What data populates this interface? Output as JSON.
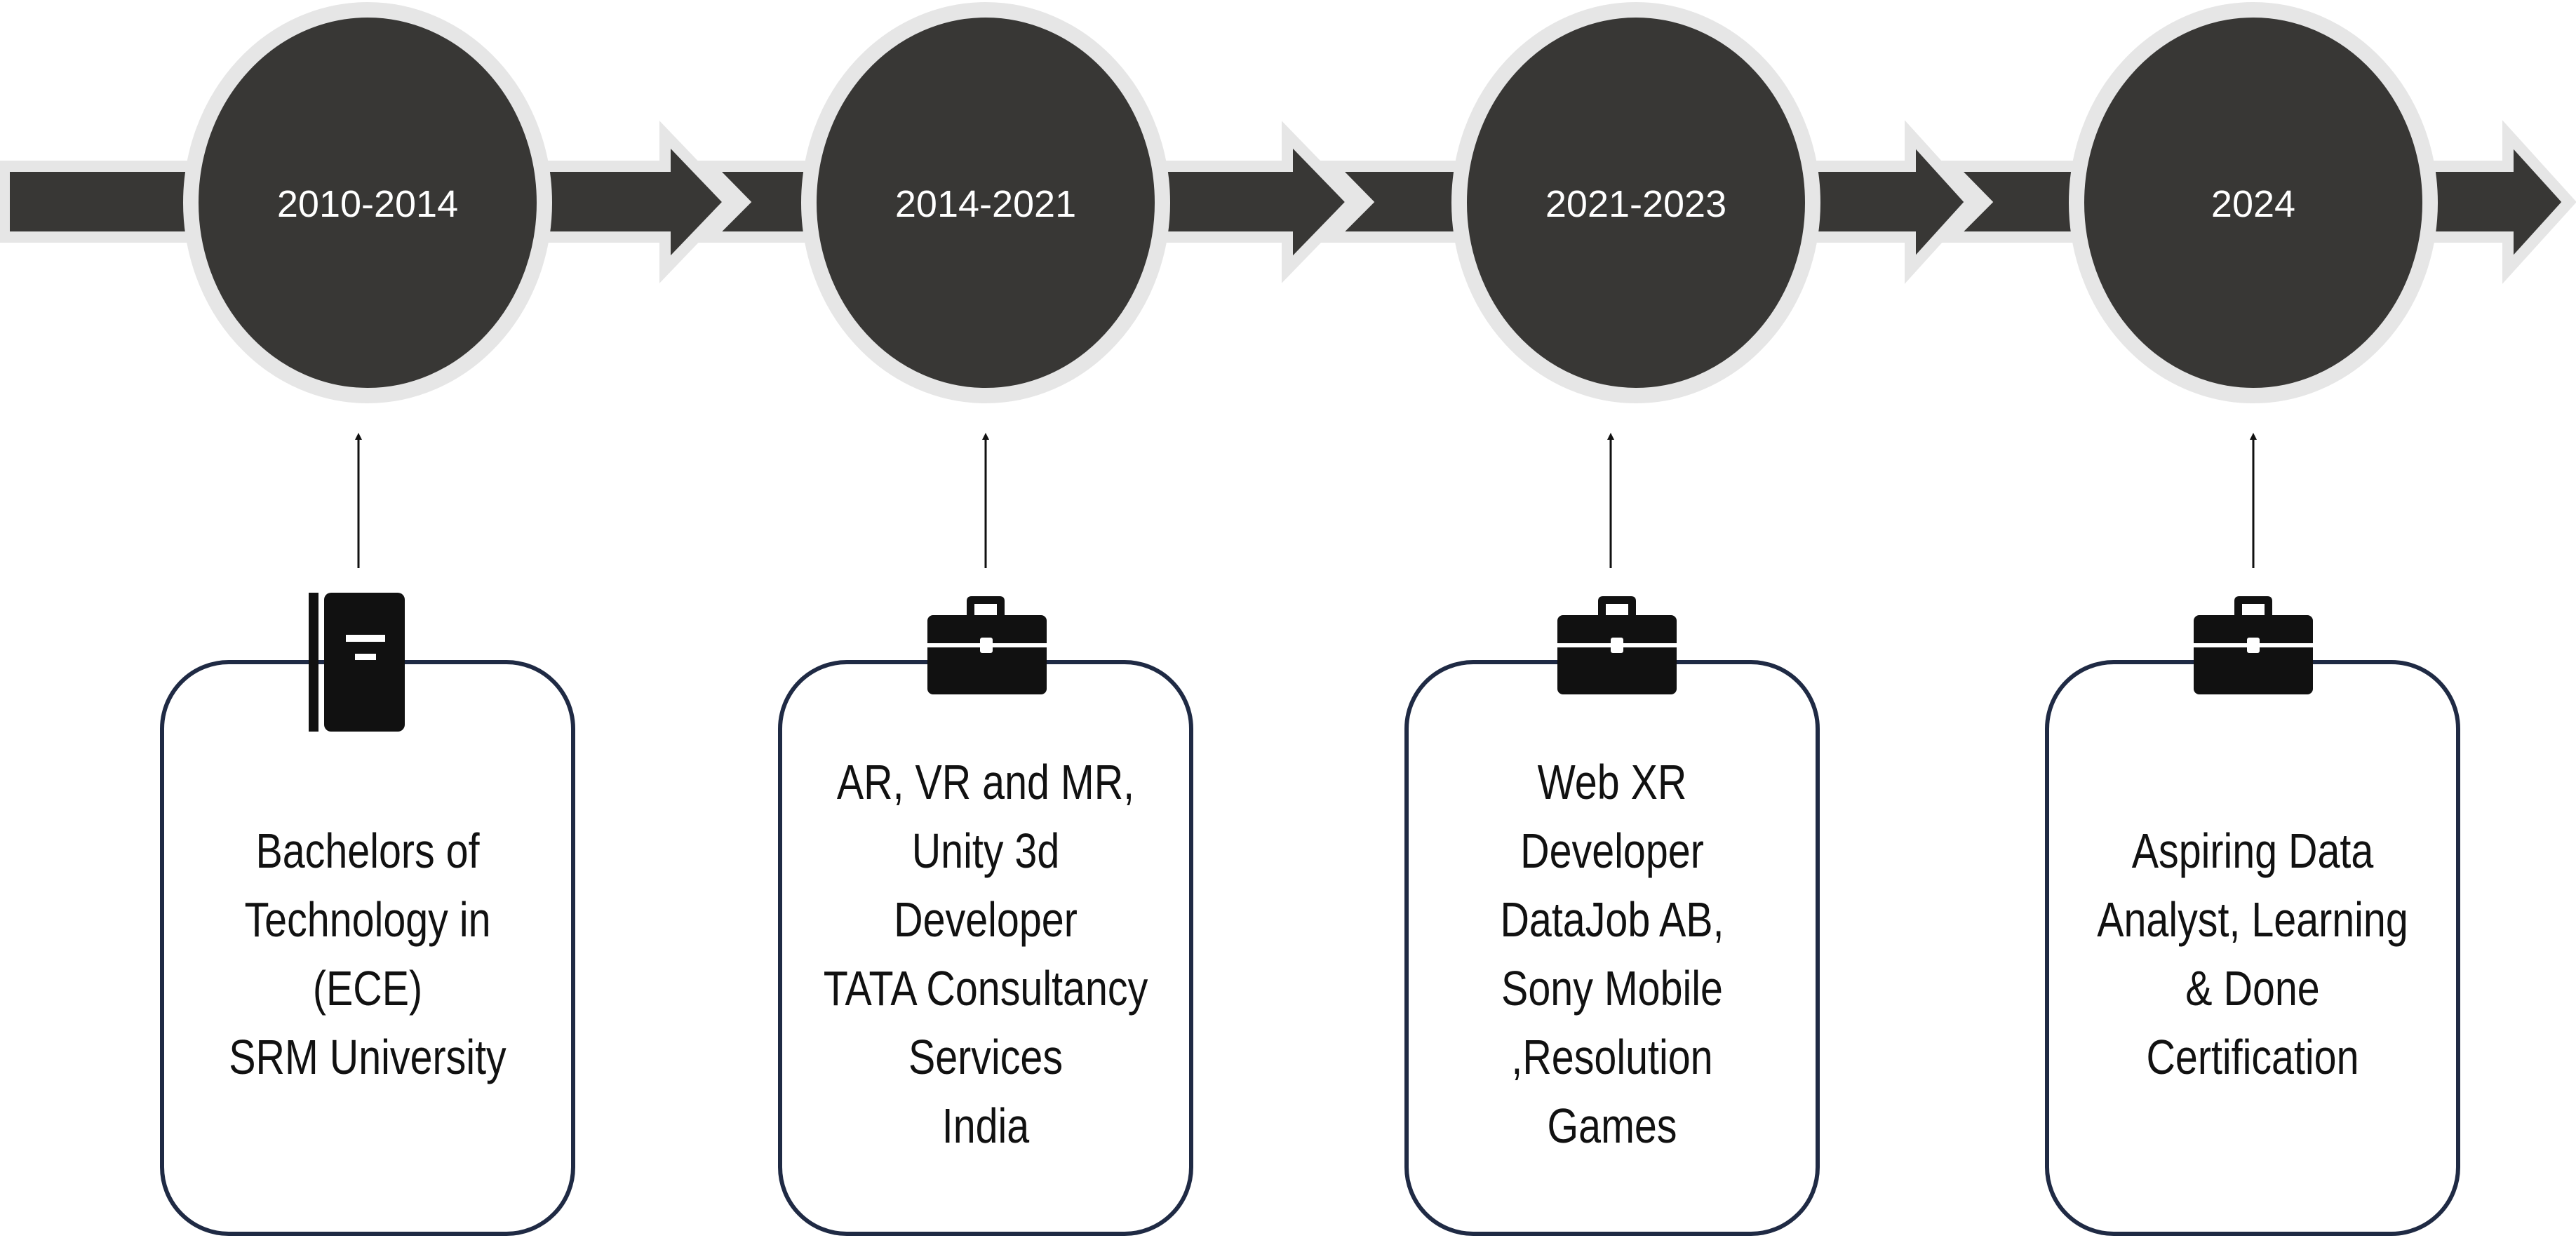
{
  "milestones": [
    {
      "year": "2010-2014",
      "icon": "book-icon",
      "lines": [
        "Bachelors of",
        "Technology in",
        "(ECE)",
        "SRM University"
      ]
    },
    {
      "year": "2014-2021",
      "icon": "briefcase-icon",
      "lines": [
        "AR, VR and MR,",
        "Unity 3d",
        "Developer",
        "TATA Consultancy",
        "Services",
        "India"
      ]
    },
    {
      "year": "2021-2023",
      "icon": "briefcase-icon",
      "lines": [
        "Web XR",
        "Developer",
        "DataJob AB,",
        "Sony Mobile",
        ",Resolution",
        "Games"
      ]
    },
    {
      "year": "2024",
      "icon": "briefcase-icon",
      "lines": [
        "Aspiring Data",
        "Analyst, Learning",
        "& Done",
        "Certification"
      ]
    }
  ],
  "colors": {
    "bar": "#383735",
    "bar_outline": "#e6e6e6",
    "card_border": "#1f2a44",
    "icon": "#111111",
    "year_text": "#ffffff"
  }
}
